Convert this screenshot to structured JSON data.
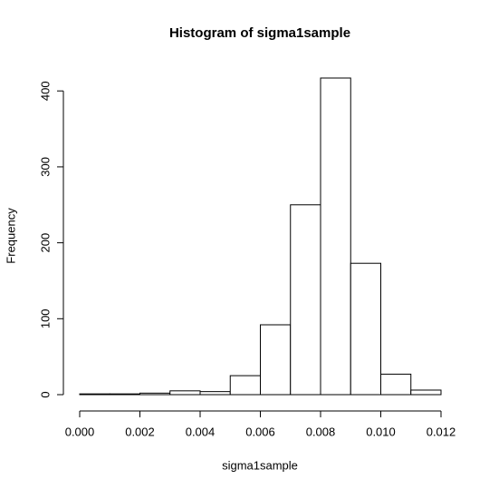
{
  "chart_data": {
    "type": "histogram",
    "title": "Histogram of sigma1sample",
    "xlabel": "sigma1sample",
    "ylabel": "Frequency",
    "bins": [
      0,
      0.001,
      0.002,
      0.003,
      0.004,
      0.005,
      0.006,
      0.007,
      0.008,
      0.009,
      0.01,
      0.011,
      0.012
    ],
    "counts": [
      1,
      1,
      2,
      5,
      4,
      25,
      92,
      250,
      417,
      173,
      27,
      6
    ],
    "color": "#ffffff",
    "xlim": [
      0,
      0.012
    ],
    "xticks": [
      {
        "value": 0,
        "label": "0.000"
      },
      {
        "value": 0.002,
        "label": "0.002"
      },
      {
        "value": 0.004,
        "label": "0.004"
      },
      {
        "value": 0.006,
        "label": "0.006"
      },
      {
        "value": 0.008,
        "label": "0.008"
      },
      {
        "value": 0.01,
        "label": "0.010"
      },
      {
        "value": 0.012,
        "label": "0.012"
      }
    ],
    "ylim": [
      0,
      417
    ],
    "yticks": [
      0,
      100,
      200,
      300,
      400
    ]
  }
}
